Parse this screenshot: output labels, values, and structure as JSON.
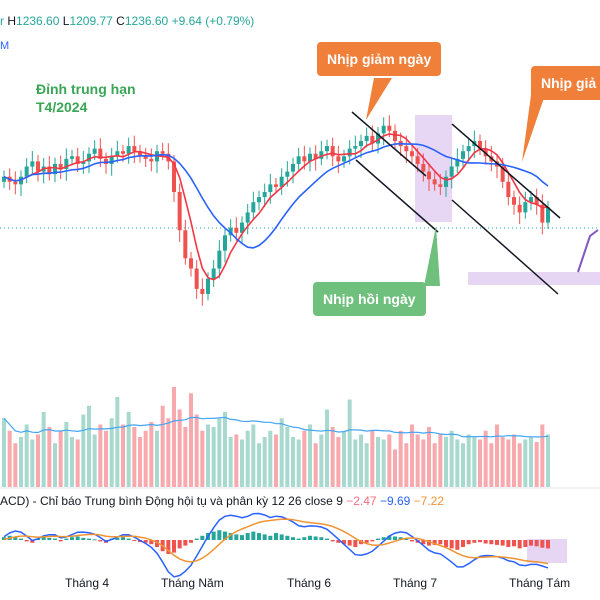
{
  "header": {
    "ohlc_fragment": "r",
    "high_label": "H",
    "high_value": "1236.60",
    "low_label": "L",
    "low_value": "1209.77",
    "close_label": "C",
    "close_value": "1236.60",
    "change": "+9.64 (+0.79%)",
    "ma_fragment": "M"
  },
  "annotations": {
    "peak_line1": "Đỉnh trung hạn",
    "peak_line2": "T4/2024",
    "drop_callout_1": "Nhịp giảm ngày",
    "drop_callout_2": "Nhịp giả",
    "rebound_callout": "Nhịp hồi ngày"
  },
  "macd": {
    "label": "ACD) - Chỉ báo Trung bình Động hội tụ và phân kỳ 12 26 close 9",
    "histogram": "−2.47",
    "macd": "−9.69",
    "signal": "−7.22"
  },
  "colors": {
    "up": "#26a69a",
    "down": "#ef5350",
    "ma_fast": "#f23645",
    "ma_slow": "#2962ff",
    "vol_up": "#a8d9cf",
    "vol_down": "#f7a9ad",
    "callout_orange": "#f07f3a",
    "callout_green": "#6fbf7d",
    "highlight": "#e3d0f2"
  },
  "chart_data": {
    "type": "candlestick",
    "x_tick_labels": [
      "Tháng 4",
      "Tháng Năm",
      "Tháng 6",
      "Tháng 7",
      "Tháng Tám"
    ],
    "last_candle": {
      "high": 1236.6,
      "low": 1209.77,
      "close": 1236.6,
      "change": 9.64,
      "change_pct": 0.79
    },
    "closes": [
      0.66,
      0.64,
      0.63,
      0.66,
      0.7,
      0.72,
      0.68,
      0.7,
      0.67,
      0.71,
      0.69,
      0.73,
      0.74,
      0.71,
      0.72,
      0.75,
      0.77,
      0.73,
      0.71,
      0.74,
      0.76,
      0.75,
      0.78,
      0.76,
      0.74,
      0.73,
      0.72,
      0.76,
      0.75,
      0.72,
      0.6,
      0.45,
      0.34,
      0.3,
      0.22,
      0.2,
      0.26,
      0.3,
      0.37,
      0.43,
      0.46,
      0.44,
      0.48,
      0.52,
      0.56,
      0.58,
      0.6,
      0.63,
      0.62,
      0.66,
      0.68,
      0.71,
      0.74,
      0.72,
      0.75,
      0.73,
      0.76,
      0.78,
      0.74,
      0.72,
      0.74,
      0.77,
      0.78,
      0.8,
      0.82,
      0.79,
      0.83,
      0.86,
      0.84,
      0.8,
      0.78,
      0.76,
      0.74,
      0.71,
      0.68,
      0.65,
      0.63,
      0.62,
      0.66,
      0.7,
      0.73,
      0.76,
      0.78,
      0.8,
      0.77,
      0.74,
      0.72,
      0.7,
      0.64,
      0.58,
      0.55,
      0.52,
      0.56,
      0.58,
      0.55,
      0.48,
      0.54
    ],
    "volume": [
      0.55,
      0.45,
      0.35,
      0.4,
      0.5,
      0.38,
      0.42,
      0.6,
      0.48,
      0.35,
      0.45,
      0.52,
      0.4,
      0.38,
      0.58,
      0.65,
      0.42,
      0.5,
      0.45,
      0.55,
      0.72,
      0.5,
      0.6,
      0.48,
      0.4,
      0.45,
      0.52,
      0.45,
      0.65,
      0.55,
      0.8,
      0.62,
      0.48,
      0.75,
      0.58,
      0.45,
      0.5,
      0.48,
      0.55,
      0.6,
      0.4,
      0.42,
      0.38,
      0.45,
      0.5,
      0.35,
      0.4,
      0.45,
      0.42,
      0.55,
      0.48,
      0.4,
      0.38,
      0.45,
      0.5,
      0.35,
      0.42,
      0.62,
      0.48,
      0.4,
      0.45,
      0.7,
      0.38,
      0.42,
      0.35,
      0.45,
      0.4,
      0.38,
      0.42,
      0.3,
      0.45,
      0.35,
      0.5,
      0.42,
      0.38,
      0.48,
      0.35,
      0.42,
      0.4,
      0.45,
      0.38,
      0.35,
      0.42,
      0.4,
      0.38,
      0.45,
      0.35,
      0.5,
      0.4,
      0.38,
      0.42,
      0.35,
      0.38,
      0.4,
      0.36,
      0.5,
      0.42
    ],
    "macd_hist": [
      0.2,
      0.3,
      0.25,
      0.1,
      -0.1,
      -0.2,
      0.1,
      0.2,
      0.15,
      0.1,
      -0.1,
      0.1,
      0.2,
      0.25,
      0.15,
      0.1,
      0.05,
      -0.1,
      -0.2,
      0.1,
      0.15,
      0.2,
      0.1,
      -0.05,
      -0.15,
      -0.2,
      -0.3,
      -0.5,
      -0.8,
      -1.0,
      -0.9,
      -0.6,
      -0.4,
      -0.2,
      0.1,
      0.3,
      0.5,
      0.6,
      0.7,
      0.6,
      0.5,
      0.4,
      0.35,
      0.5,
      0.6,
      0.5,
      0.4,
      0.3,
      0.5,
      0.4,
      0.3,
      0.2,
      0.1,
      0.2,
      0.3,
      0.25,
      0.2,
      0.1,
      -0.1,
      -0.2,
      -0.3,
      -0.4,
      -0.5,
      -0.3,
      -0.2,
      -0.1,
      0.1,
      0.2,
      0.3,
      0.25,
      0.2,
      0.1,
      -0.1,
      -0.2,
      -0.3,
      -0.4,
      -0.35,
      -0.3,
      -0.5,
      -0.6,
      -0.7,
      -0.5,
      -0.3,
      -0.2,
      -0.15,
      -0.25,
      -0.3,
      -0.35,
      -0.4,
      -0.5,
      -0.45,
      -0.6,
      -0.5,
      -0.4,
      -0.45,
      -0.55,
      -0.6
    ]
  }
}
